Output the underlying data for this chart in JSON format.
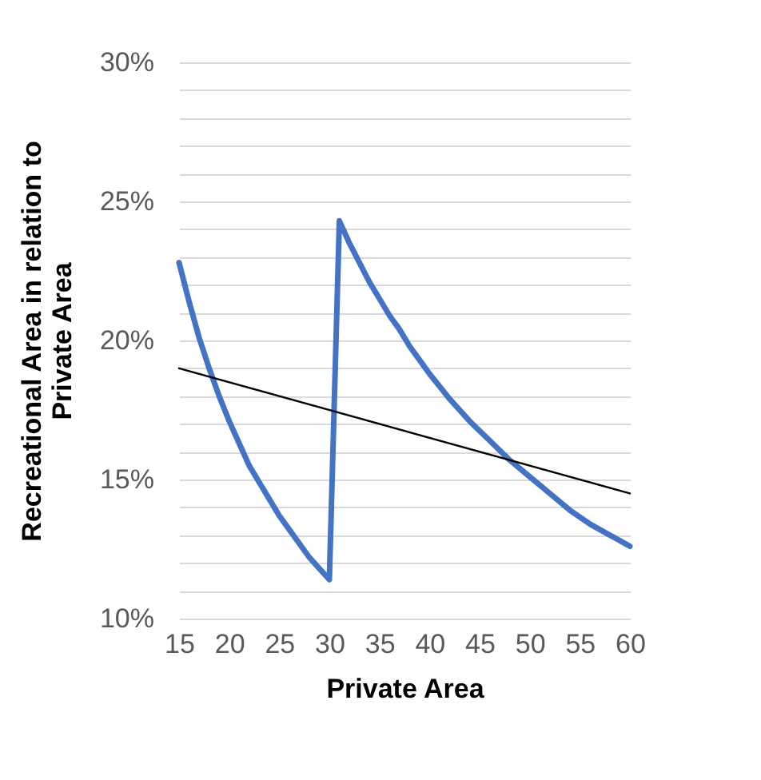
{
  "chart_data": {
    "type": "line",
    "xlabel": "Private Area",
    "ylabel": "Recreational Area in relation to\nPrivate Area",
    "xlim": [
      15,
      60
    ],
    "xticks": [
      15,
      20,
      25,
      30,
      35,
      40,
      45,
      50,
      55,
      60
    ],
    "ylim": [
      0.1,
      0.3
    ],
    "yticks": [
      {
        "value": 0.1,
        "label": "10%"
      },
      {
        "value": 0.11,
        "label": null
      },
      {
        "value": 0.12,
        "label": null
      },
      {
        "value": 0.13,
        "label": null
      },
      {
        "value": 0.14,
        "label": null
      },
      {
        "value": 0.15,
        "label": "15%"
      },
      {
        "value": 0.16,
        "label": null
      },
      {
        "value": 0.17,
        "label": null
      },
      {
        "value": 0.18,
        "label": null
      },
      {
        "value": 0.19,
        "label": null
      },
      {
        "value": 0.2,
        "label": "20%"
      },
      {
        "value": 0.21,
        "label": null
      },
      {
        "value": 0.22,
        "label": null
      },
      {
        "value": 0.23,
        "label": null
      },
      {
        "value": 0.24,
        "label": null
      },
      {
        "value": 0.25,
        "label": "25%"
      },
      {
        "value": 0.26,
        "label": null
      },
      {
        "value": 0.27,
        "label": null
      },
      {
        "value": 0.28,
        "label": null
      },
      {
        "value": 0.29,
        "label": null
      },
      {
        "value": 0.3,
        "label": "30%"
      }
    ],
    "grid": "y",
    "series": [
      {
        "color": "#4472c4",
        "x": [
          15,
          16,
          17,
          18,
          19,
          20,
          21,
          22,
          23,
          24,
          25,
          26,
          27,
          28,
          29,
          30,
          31,
          32,
          33,
          34,
          35,
          36,
          37,
          38,
          39,
          40,
          42,
          44,
          46,
          48,
          50,
          52,
          54,
          56,
          58,
          60
        ],
        "values": [
          0.228,
          0.214,
          0.201,
          0.19,
          0.18,
          0.171,
          0.163,
          0.155,
          0.149,
          0.143,
          0.137,
          0.132,
          0.127,
          0.122,
          0.118,
          0.114,
          0.243,
          0.235,
          0.228,
          0.221,
          0.215,
          0.209,
          0.204,
          0.198,
          0.193,
          0.188,
          0.179,
          0.171,
          0.164,
          0.157,
          0.151,
          0.145,
          0.139,
          0.134,
          0.13,
          0.126
        ]
      },
      {
        "type": "line",
        "color": "#000000",
        "x": [
          15,
          60
        ],
        "values": [
          0.19,
          0.145
        ]
      }
    ]
  }
}
